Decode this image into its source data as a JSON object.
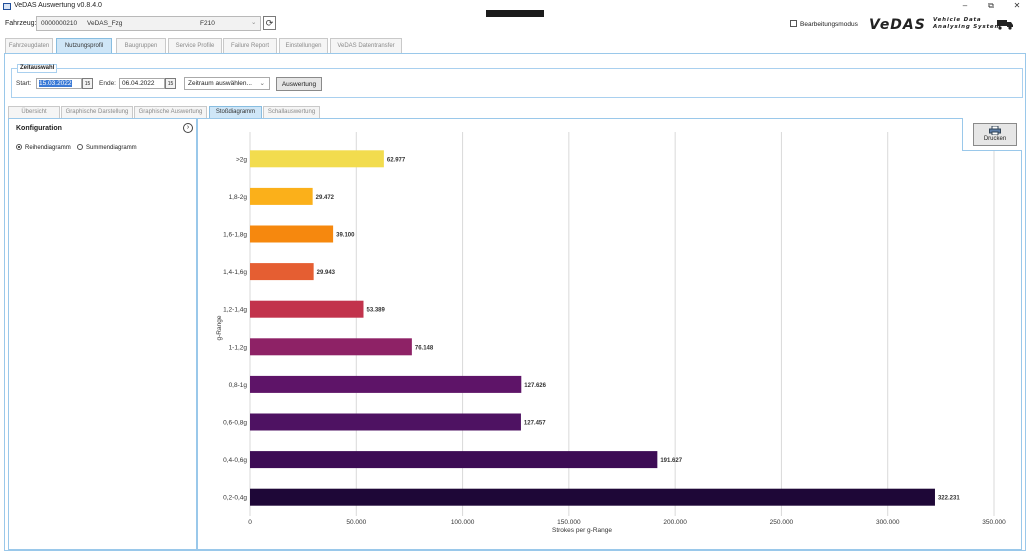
{
  "window": {
    "title": "VeDAS Auswertung v0.8.4.0",
    "min_label": "–",
    "restore_label": "⧉",
    "close_label": "✕"
  },
  "vehicle": {
    "label": "Fahrzeug:",
    "id": "0000000210",
    "name": "VeDAS_Fzg",
    "type": "F210",
    "dropdown_glyph": "⌄",
    "refresh_glyph": "⟳"
  },
  "edit_mode": {
    "label": "Bearbeitungsmodus",
    "checked": false
  },
  "logo": {
    "brand": "VeDAS",
    "line1": "Vehicle Data",
    "line2": "Analysing System"
  },
  "main_tabs": [
    "Fahrzeugdaten",
    "Nutzungsprofil",
    "Baugruppen",
    "Service Profile",
    "Failure Report",
    "Einstellungen",
    "VeDAS Datentransfer"
  ],
  "main_tab_active": 1,
  "zeitauswahl": {
    "legend": "Zeitauswahl",
    "start_label": "Start:",
    "start_value": "15.03.2022",
    "end_label": "Ende:",
    "end_value": "06.04.2022",
    "cal_glyph": "15",
    "range_placeholder": "Zeitraum auswählen...",
    "range_dropdown_glyph": "⌄",
    "evaluate_button": "Auswertung"
  },
  "sub_tabs": [
    "Übersicht",
    "Graphische Darstellung",
    "Graphische Auswertung",
    "Stoßdiagramm",
    "Schallauswertung"
  ],
  "sub_tab_active": 3,
  "config": {
    "title": "Konfiguration",
    "collapse_glyph": "›",
    "options": [
      {
        "label": "Reihendiagramm",
        "selected": true
      },
      {
        "label": "Summendiagramm",
        "selected": false
      }
    ]
  },
  "print_button": "Drucken",
  "colors": {
    "accent": "#9ac8ea",
    "active_tab": "#cfe6f7"
  },
  "chart_data": {
    "type": "bar",
    "orientation": "horizontal",
    "categories": [
      ">2g",
      "1,8-2g",
      "1,6-1,8g",
      "1,4-1,6g",
      "1,2-1,4g",
      "1-1,2g",
      "0,8-1g",
      "0,6-0,8g",
      "0,4-0,6g",
      "0,2-0,4g"
    ],
    "values": [
      62977,
      29472,
      39100,
      29943,
      53389,
      76148,
      127626,
      127457,
      191627,
      322231
    ],
    "value_labels": [
      "62.977",
      "29.472",
      "39.100",
      "29.943",
      "53.389",
      "76.148",
      "127.626",
      "127.457",
      "191.627",
      "322.231"
    ],
    "bar_colors": [
      "#f2dc4e",
      "#fbb01a",
      "#f6880e",
      "#e55e32",
      "#c2334c",
      "#8e2266",
      "#5e1468",
      "#4e1262",
      "#3d0c55",
      "#1e0737"
    ],
    "xlabel": "Strokes per g-Range",
    "ylabel": "g-Range",
    "xlim": [
      0,
      350000
    ],
    "xticks": [
      0,
      50000,
      100000,
      150000,
      200000,
      250000,
      300000,
      350000
    ],
    "xtick_labels": [
      "0",
      "50.000",
      "100.000",
      "150.000",
      "200.000",
      "250.000",
      "300.000",
      "350.000"
    ],
    "grid": true
  }
}
